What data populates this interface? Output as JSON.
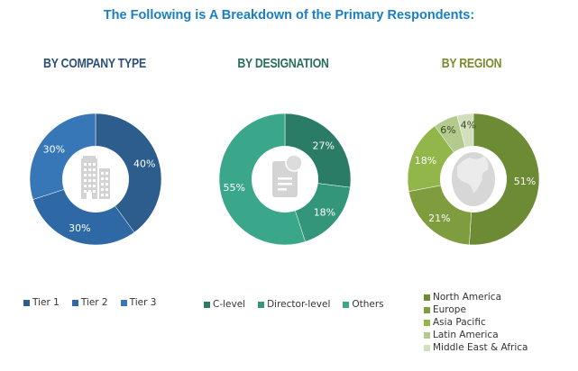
{
  "title": "The Following is A Breakdown of the Primary Respondents:",
  "chart_data": [
    {
      "type": "pie",
      "title": "BY COMPANY TYPE",
      "title_color": "#2b4f76",
      "categories": [
        "Tier 1",
        "Tier 2",
        "Tier 3"
      ],
      "values": [
        40,
        30,
        30
      ],
      "labels": [
        "40%",
        "30%",
        "30%"
      ],
      "colors": [
        "#2c5d8c",
        "#2e69a6",
        "#3777b8"
      ],
      "icon": "building-icon"
    },
    {
      "type": "pie",
      "title": "BY DESIGNATION",
      "title_color": "#2a6e5c",
      "categories": [
        "C-level",
        "Director-level",
        "Others"
      ],
      "values": [
        27,
        18,
        55
      ],
      "labels": [
        "27%",
        "18%",
        "55%"
      ],
      "colors": [
        "#2a7c66",
        "#33957a",
        "#3aa78a"
      ],
      "icon": "document-icon"
    },
    {
      "type": "pie",
      "title": "BY REGION",
      "title_color": "#7d8b2e",
      "categories": [
        "North America",
        "Europe",
        "Asia Pacific",
        "Latin America",
        "Middle East & Africa"
      ],
      "values": [
        51,
        21,
        18,
        6,
        4
      ],
      "labels": [
        "51%",
        "21%",
        "18%",
        "6%",
        "4%"
      ],
      "colors": [
        "#6d8a35",
        "#7f9d3f",
        "#93b64b",
        "#b3c98e",
        "#d2dfbd"
      ],
      "label_colors": [
        "#ffffff",
        "#ffffff",
        "#ffffff",
        "#3a4a20",
        "#3a4a20"
      ],
      "icon": "globe-icon"
    }
  ]
}
